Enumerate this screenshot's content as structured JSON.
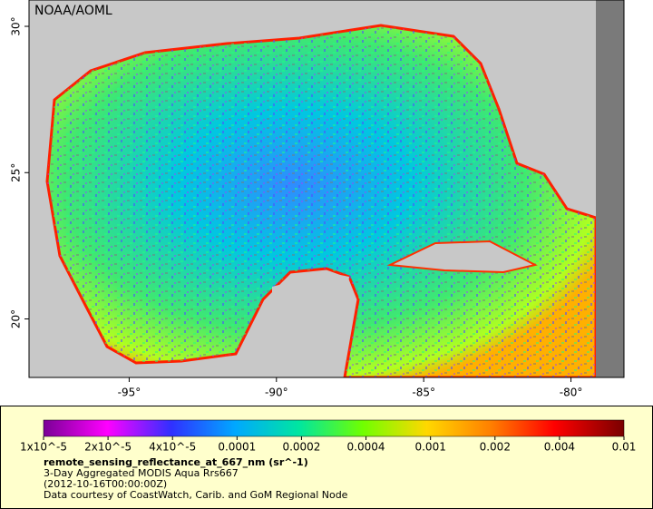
{
  "map": {
    "watermark": "NOAA/AOML",
    "xlim": [
      -98.4,
      -78.2
    ],
    "ylim": [
      18.0,
      30.9
    ],
    "xticks": [
      {
        "value": -95,
        "label": "-95°"
      },
      {
        "value": -90,
        "label": "-90°"
      },
      {
        "value": -85,
        "label": "-85°"
      },
      {
        "value": -80,
        "label": "-80°"
      }
    ],
    "yticks": [
      {
        "value": 20,
        "label": "20°"
      },
      {
        "value": 25,
        "label": "25°"
      },
      {
        "value": 30,
        "label": "30°"
      }
    ]
  },
  "colorbar": {
    "log": true,
    "range": [
      1e-05,
      0.01
    ],
    "ticks": [
      {
        "value": 1e-05,
        "label": "1x10^-5"
      },
      {
        "value": 2e-05,
        "label": "2x10^-5"
      },
      {
        "value": 4e-05,
        "label": "4x10^-5"
      },
      0.0001,
      0.0002,
      0.0004,
      0.001,
      0.002,
      0.004,
      0.01
    ]
  },
  "legend": {
    "title": "remote_sensing_reflectance_at_667_nm (sr^-1)",
    "lines": [
      "3-Day Aggregated MODIS Aqua Rrs667",
      "(2012-10-16T00:00:00Z)",
      "Data courtesy of CoastWatch, Carib. and GoM Regional Node"
    ]
  }
}
